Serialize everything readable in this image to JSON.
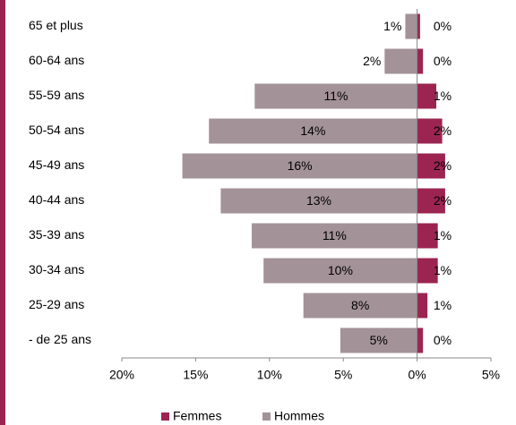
{
  "chart_data": {
    "type": "pyramid",
    "categories": [
      "65 et plus",
      "60-64 ans",
      "55-59 ans",
      "50-54 ans",
      "45-49 ans",
      "40-44 ans",
      "35-39 ans",
      "30-34 ans",
      "25-29 ans",
      "- de 25 ans"
    ],
    "series": [
      {
        "name": "Femmes",
        "color": "#9b2550",
        "values": [
          0.2,
          0.4,
          1.3,
          1.7,
          1.9,
          1.9,
          1.4,
          1.4,
          0.7,
          0.4
        ],
        "value_labels": [
          "0%",
          "0%",
          "1%",
          "2%",
          "2%",
          "2%",
          "1%",
          "1%",
          "1%",
          "0%"
        ]
      },
      {
        "name": "Hommes",
        "color": "#a39298",
        "values": [
          -0.8,
          -2.2,
          -11.0,
          -14.1,
          -15.9,
          -13.3,
          -11.2,
          -10.4,
          -7.7,
          -5.2
        ],
        "value_labels": [
          "1%",
          "2%",
          "11%",
          "14%",
          "16%",
          "13%",
          "11%",
          "10%",
          "8%",
          "5%"
        ]
      }
    ],
    "xlim": [
      -20,
      5
    ],
    "xticks": [
      {
        "value": -20,
        "label": "20%"
      },
      {
        "value": -15,
        "label": "15%"
      },
      {
        "value": -10,
        "label": "10%"
      },
      {
        "value": -5,
        "label": "5%"
      },
      {
        "value": 0,
        "label": "0%"
      },
      {
        "value": 5,
        "label": "5%"
      }
    ]
  }
}
